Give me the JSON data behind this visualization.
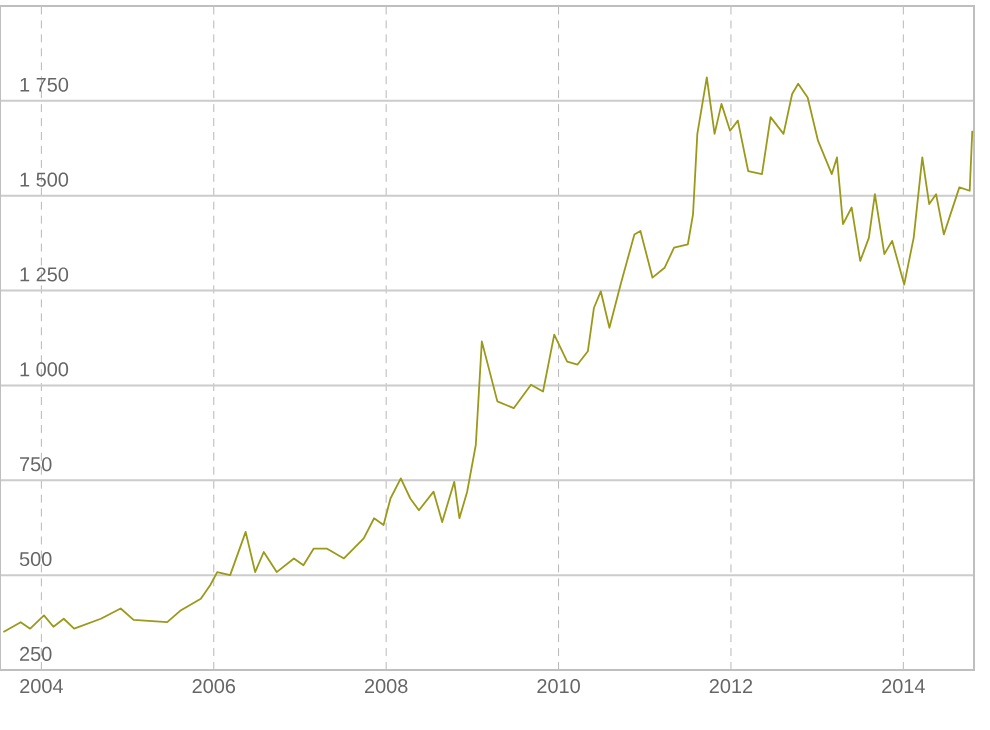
{
  "chart_data": {
    "type": "line",
    "x": [
      2003.56,
      2003.76,
      2003.87,
      2004.03,
      2004.14,
      2004.26,
      2004.38,
      2004.69,
      2004.92,
      2005.07,
      2005.46,
      2005.61,
      2005.85,
      2005.96,
      2006.04,
      2006.19,
      2006.37,
      2006.48,
      2006.58,
      2006.73,
      2006.93,
      2007.04,
      2007.16,
      2007.31,
      2007.51,
      2007.74,
      2007.86,
      2007.97,
      2008.05,
      2008.17,
      2008.28,
      2008.38,
      2008.55,
      2008.65,
      2008.79,
      2008.85,
      2008.94,
      2009.04,
      2009.11,
      2009.2,
      2009.29,
      2009.48,
      2009.68,
      2009.82,
      2009.95,
      2010.1,
      2010.22,
      2010.34,
      2010.41,
      2010.49,
      2010.59,
      2010.72,
      2010.88,
      2010.95,
      2011.09,
      2011.23,
      2011.34,
      2011.5,
      2011.56,
      2011.61,
      2011.72,
      2011.81,
      2011.89,
      2011.99,
      2012.08,
      2012.2,
      2012.36,
      2012.46,
      2012.61,
      2012.71,
      2012.78,
      2012.89,
      2013.01,
      2013.17,
      2013.23,
      2013.3,
      2013.4,
      2013.5,
      2013.6,
      2013.67,
      2013.78,
      2013.87,
      2014.01,
      2014.12,
      2014.22,
      2014.3,
      2014.38,
      2014.47,
      2014.56,
      2014.65,
      2014.77,
      2014.8
    ],
    "values": [
      350,
      376,
      359,
      394,
      364,
      385,
      359,
      385,
      412,
      382,
      376,
      406,
      438,
      474,
      508,
      500,
      614,
      508,
      561,
      508,
      544,
      526,
      570,
      570,
      544,
      597,
      650,
      632,
      702,
      755,
      702,
      671,
      720,
      640,
      746,
      650,
      720,
      843,
      1116,
      1037,
      958,
      940,
      1002,
      984,
      1134,
      1063,
      1055,
      1090,
      1204,
      1248,
      1152,
      1266,
      1398,
      1407,
      1284,
      1310,
      1363,
      1372,
      1451,
      1663,
      1812,
      1663,
      1742,
      1671,
      1698,
      1565,
      1557,
      1707,
      1663,
      1768,
      1795,
      1759,
      1645,
      1557,
      1601,
      1425,
      1469,
      1328,
      1389,
      1504,
      1346,
      1381,
      1266,
      1389,
      1601,
      1478,
      1504,
      1398,
      1460,
      1522,
      1513,
      1671
    ],
    "color": "#9a9a1a",
    "xlim": [
      2003.52,
      2014.82
    ],
    "ylim": [
      250,
      2000
    ],
    "xticks": [
      2004,
      2006,
      2008,
      2010,
      2012,
      2014
    ],
    "yticks": [
      {
        "value": 250,
        "label": "250"
      },
      {
        "value": 500,
        "label": "500"
      },
      {
        "value": 750,
        "label": "750"
      },
      {
        "value": 1000,
        "label": "1 000"
      },
      {
        "value": 1250,
        "label": "1 250"
      },
      {
        "value": 1500,
        "label": "1 500"
      },
      {
        "value": 1750,
        "label": "1 750"
      }
    ],
    "grid": true
  }
}
